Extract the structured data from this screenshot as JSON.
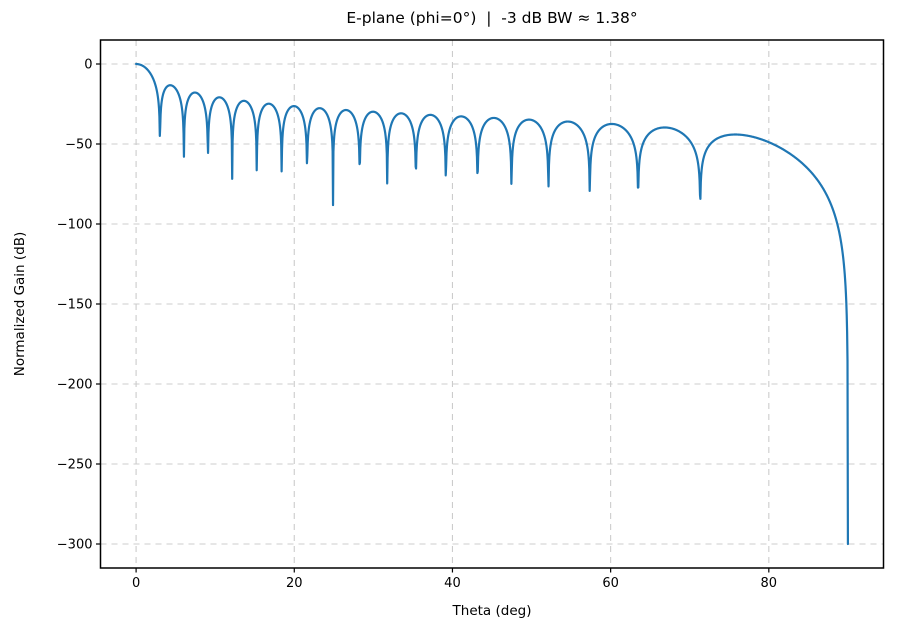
{
  "figure": {
    "title": "E-plane (phi=0°)  |  -3 dB BW ≈ 1.38°",
    "xlabel": "Theta (deg)",
    "ylabel": "Normalized Gain (dB)"
  },
  "chart_data": {
    "type": "line",
    "title": "E-plane (phi=0°)  |  -3 dB BW ≈ 1.38°",
    "xlabel": "Theta (deg)",
    "ylabel": "Normalized Gain (dB)",
    "xlim": [
      -4.5,
      94.5
    ],
    "ylim": [
      -315,
      15
    ],
    "xticks": {
      "values": [
        0,
        20,
        40,
        60,
        80
      ],
      "labels": [
        "0",
        "20",
        "40",
        "60",
        "80"
      ]
    },
    "yticks": {
      "values": [
        0,
        -50,
        -100,
        -150,
        -200,
        -250,
        -300
      ],
      "labels": [
        "0",
        "−50",
        "−100",
        "−150",
        "−200",
        "−250",
        "−300"
      ]
    },
    "grid": {
      "show": true,
      "color": "#cccccc",
      "dash": "6 5",
      "linewidth": 1.1
    },
    "legend": null,
    "background": "#ffffff",
    "spine_color": "#000000",
    "series": [
      {
        "name": "normalized-gain-pattern",
        "color": "#1f77b4",
        "linewidth": 2.2,
        "generator": {
          "kind": "uniform-line-array-pattern",
          "formula": "G(theta)=20*log10(|sin(N*pi*(d/lambda)*sin(theta))/(N*sin(pi*(d/lambda)*sin(theta)))|*cos(theta)), floored at floor_db",
          "n_elements": 38,
          "spacing_over_lambda": 0.5,
          "theta_start_deg": 0,
          "theta_end_deg": 90,
          "theta_step_deg": 0.05,
          "floor_db": -300
        },
        "key_points": {
          "mainlobe_peak": {
            "theta_deg": 0,
            "gain_db": 0
          },
          "half_power_bw_label_deg": 1.38,
          "first_null_theta_deg": 3.0,
          "first_sidelobe_db": -15,
          "mid_sidelobe_envelope_db": -38,
          "last_null_theta_deg": 71.3,
          "endfire_hump": {
            "theta_deg": 77,
            "gain_db": -45
          },
          "endfire_floor": {
            "theta_deg": 90,
            "gain_db": -300
          }
        }
      }
    ]
  }
}
